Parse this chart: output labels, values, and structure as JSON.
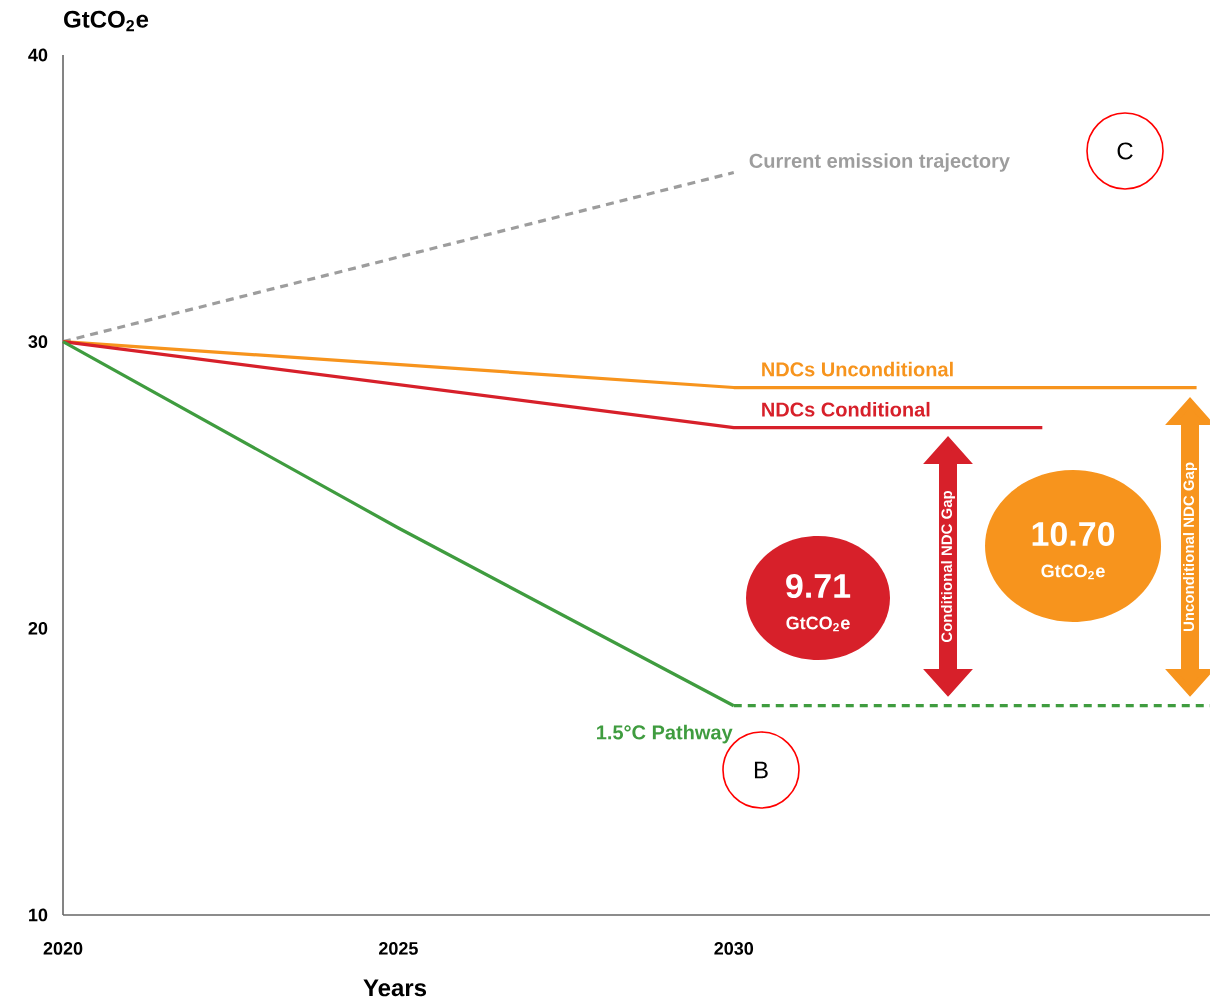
{
  "chart_data": {
    "type": "line",
    "xlabel": "Years",
    "ylabel": "GtCO$_{2}$e",
    "xlim": [
      2020,
      2037.1
    ],
    "xticks": [
      2020,
      2025,
      2030
    ],
    "ylim": [
      10,
      40
    ],
    "yticks": [
      10,
      20,
      30,
      40
    ],
    "series": [
      {
        "name": "Current emission trajectory",
        "color": "#9d9d9d",
        "line_style": "dashed",
        "x": [
          2020,
          2030
        ],
        "values": [
          30,
          35.9
        ]
      },
      {
        "name": "NDCs Unconditional",
        "color": "#f7941d",
        "x": [
          2020,
          2030,
          2036.9
        ],
        "values": [
          30,
          28.4,
          28.4
        ]
      },
      {
        "name": "NDCs Conditional",
        "color": "#d7202a",
        "x": [
          2020,
          2030,
          2034.6
        ],
        "values": [
          30,
          27.0,
          27.0
        ]
      },
      {
        "name": "1.5°C Pathway",
        "color": "#3f9c3f",
        "x": [
          2020,
          2025,
          2030
        ],
        "values": [
          30,
          23.5,
          17.3
        ]
      },
      {
        "color": "#3f9c3f",
        "line_style": "dashed",
        "x": [
          2030,
          2037.1
        ],
        "values": [
          17.3,
          17.3
        ]
      }
    ],
    "annotations": [
      "9.71",
      "GtCO$_{2}$e",
      "10.70",
      "GtCO$_{2}$e",
      "Conditional NDC Gap",
      "Unconditional NDC Gap",
      "B",
      "C"
    ]
  }
}
